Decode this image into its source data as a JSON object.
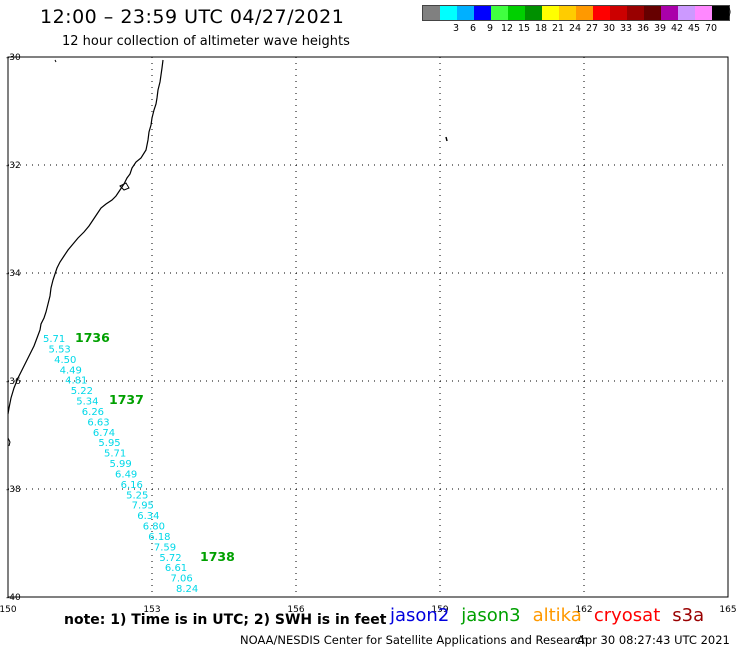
{
  "header": {
    "title": "12:00 – 23:59 UTC 04/27/2021",
    "subtitle": "12 hour collection of altimeter wave heights"
  },
  "legend": {
    "unit": "(ft)",
    "items": [
      {
        "label": "",
        "color": "#808080"
      },
      {
        "label": "3",
        "color": "#00ffff"
      },
      {
        "label": "6",
        "color": "#00b0ff"
      },
      {
        "label": "9",
        "color": "#0000ff"
      },
      {
        "label": "12",
        "color": "#40ff40"
      },
      {
        "label": "15",
        "color": "#00d000"
      },
      {
        "label": "18",
        "color": "#009000"
      },
      {
        "label": "21",
        "color": "#ffff00"
      },
      {
        "label": "24",
        "color": "#ffcc00"
      },
      {
        "label": "27",
        "color": "#ff9900"
      },
      {
        "label": "30",
        "color": "#ff0000"
      },
      {
        "label": "33",
        "color": "#cc0000"
      },
      {
        "label": "36",
        "color": "#990000"
      },
      {
        "label": "39",
        "color": "#660000"
      },
      {
        "label": "42",
        "color": "#aa00aa"
      },
      {
        "label": "45",
        "color": "#cc99ff"
      },
      {
        "label": "70",
        "color": "#ff88ff"
      },
      {
        "label": "",
        "color": "#000000"
      }
    ]
  },
  "map": {
    "lon_ticks": [
      "150",
      "153",
      "156",
      "159",
      "162",
      "165"
    ],
    "lat_ticks": [
      "-30",
      "-32",
      "-34",
      "-36",
      "-38",
      "-40"
    ],
    "lon_range": [
      150,
      165
    ],
    "lat_range": [
      -30,
      -40
    ],
    "track_values": [
      "5.71",
      "5.53",
      "4.50",
      "4.49",
      "4.81",
      "5.22",
      "5.34",
      "6.26",
      "6.63",
      "6.74",
      "5.95",
      "5.71",
      "5.99",
      "6.49",
      "6.16",
      "5.25",
      "7.95",
      "6.34",
      "6.80",
      "6.18",
      "7.59",
      "5.72",
      "6.61",
      "7.06",
      "8.24"
    ],
    "pass_labels": [
      "1736",
      "1737",
      "1738"
    ]
  },
  "footer": {
    "note": "note:  1) Time is in UTC;  2) SWH is in feet",
    "satellites": [
      {
        "name": "jason2",
        "color": "#0000dd"
      },
      {
        "name": "jason3",
        "color": "#00a000"
      },
      {
        "name": "altika",
        "color": "#ff9900"
      },
      {
        "name": "cryosat",
        "color": "#ff0000"
      },
      {
        "name": "s3a",
        "color": "#990000"
      }
    ],
    "source": "NOAA/NESDIS Center for Satellite Applications and Research",
    "timestamp": "Apr 30 08:27:43 UTC 2021"
  }
}
